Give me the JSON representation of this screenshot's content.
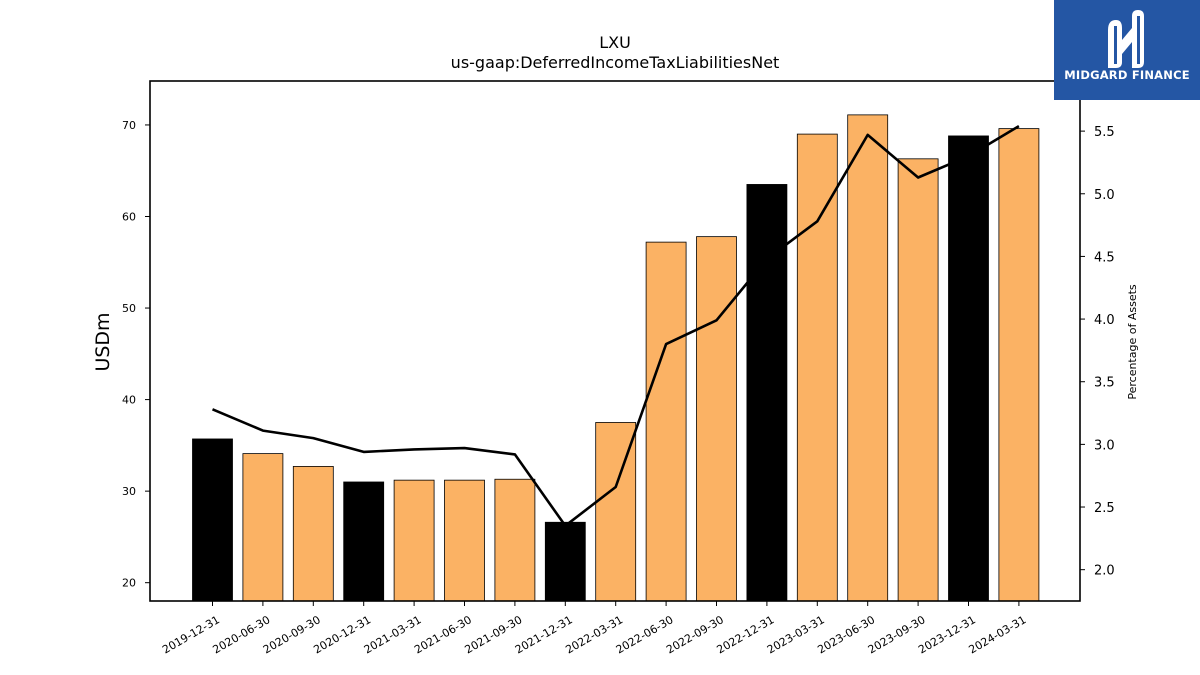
{
  "logo": {
    "text": "MIDGARD FINANCE",
    "icon": "mf-monogram-icon"
  },
  "chart_data": {
    "type": "bar",
    "title": "LXU",
    "subtitle": "us-gaap:DeferredIncomeTaxLiabilitiesNet",
    "xlabel": "",
    "ylabel": "USDm",
    "ylabel_right": "Percentage of Assets",
    "ylim": [
      18,
      74.8
    ],
    "ylim_right": [
      1.75,
      5.9
    ],
    "yticks": [
      20,
      30,
      40,
      50,
      60,
      70
    ],
    "yticks_right": [
      "2.0",
      "2.5",
      "3.0",
      "3.5",
      "4.0",
      "4.5",
      "5.0",
      "5.5"
    ],
    "categories": [
      "2019-12-31",
      "2020-06-30",
      "2020-09-30",
      "2020-12-31",
      "2021-03-31",
      "2021-06-30",
      "2021-09-30",
      "2021-12-31",
      "2022-03-31",
      "2022-06-30",
      "2022-09-30",
      "2022-12-31",
      "2023-03-31",
      "2023-06-30",
      "2023-09-30",
      "2023-12-31",
      "2024-03-31"
    ],
    "series": [
      {
        "type": "bar",
        "axis": "left",
        "values": [
          35.7,
          34.1,
          32.7,
          31.0,
          31.2,
          31.2,
          31.3,
          26.6,
          37.5,
          57.2,
          57.8,
          63.5,
          69.0,
          71.1,
          66.3,
          68.8,
          69.6
        ]
      },
      {
        "type": "line",
        "axis": "right",
        "values": [
          3.28,
          3.11,
          3.05,
          2.94,
          2.96,
          2.97,
          2.92,
          2.35,
          2.66,
          3.8,
          3.99,
          4.48,
          4.78,
          5.47,
          5.13,
          5.3,
          5.54
        ]
      }
    ],
    "bar_colors": {
      "annual": "#000000",
      "interim": "#fbb264"
    },
    "annual_flags": [
      true,
      false,
      false,
      true,
      false,
      false,
      false,
      true,
      false,
      false,
      false,
      true,
      false,
      false,
      false,
      true,
      false
    ],
    "line_color": "#000000",
    "grid": false,
    "legend": "none"
  }
}
